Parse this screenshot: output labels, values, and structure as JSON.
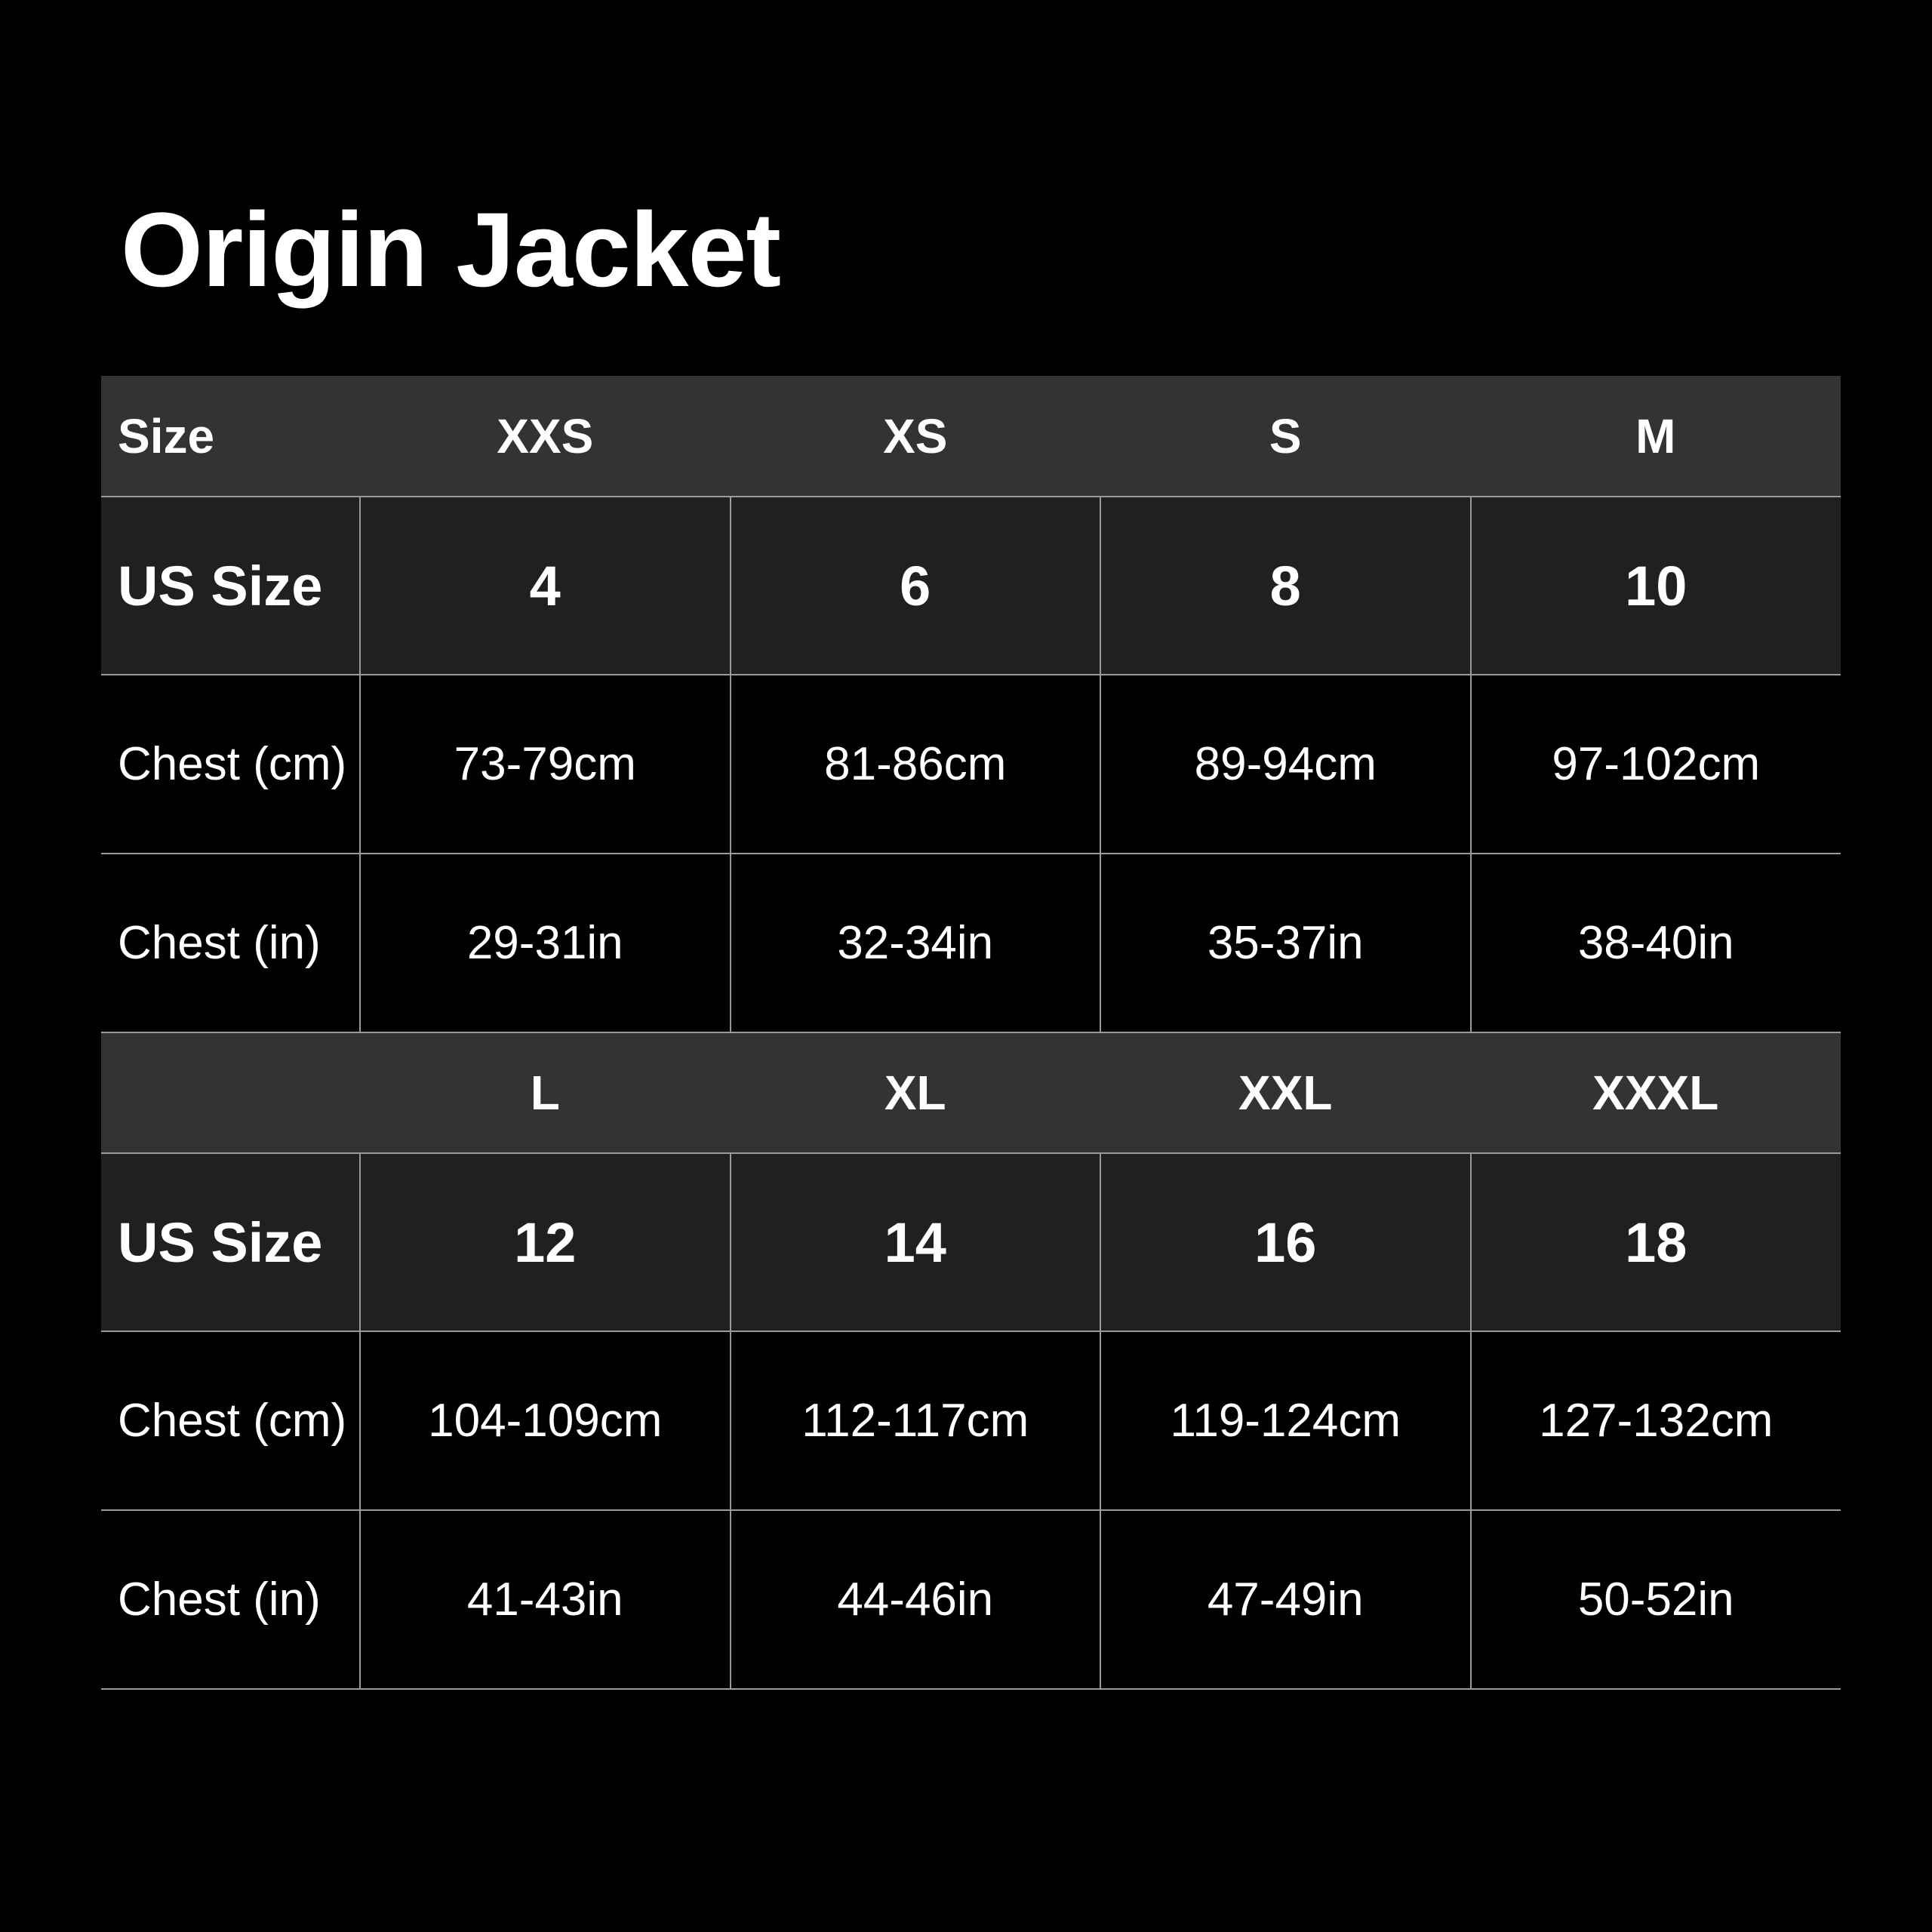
{
  "title": "Origin Jacket",
  "tables": [
    {
      "header_label": "Size",
      "sizes": [
        "XXS",
        "XS",
        "S",
        "M"
      ],
      "us_label": "US Size",
      "us": [
        "4",
        "6",
        "8",
        "10"
      ],
      "cm_label": "Chest (cm)",
      "cm": [
        "73-79cm",
        "81-86cm",
        "89-94cm",
        "97-102cm"
      ],
      "in_label": "Chest (in)",
      "in": [
        "29-31in",
        "32-34in",
        "35-37in",
        "38-40in"
      ]
    },
    {
      "header_label": "",
      "sizes": [
        "L",
        "XL",
        "XXL",
        "XXXL"
      ],
      "us_label": "US Size",
      "us": [
        "12",
        "14",
        "16",
        "18"
      ],
      "cm_label": "Chest (cm)",
      "cm": [
        "104-109cm",
        "112-117cm",
        "119-124cm",
        "127-132cm"
      ],
      "in_label": "Chest (in)",
      "in": [
        "41-43in",
        "44-46in",
        "47-49in",
        "50-52in"
      ]
    }
  ]
}
